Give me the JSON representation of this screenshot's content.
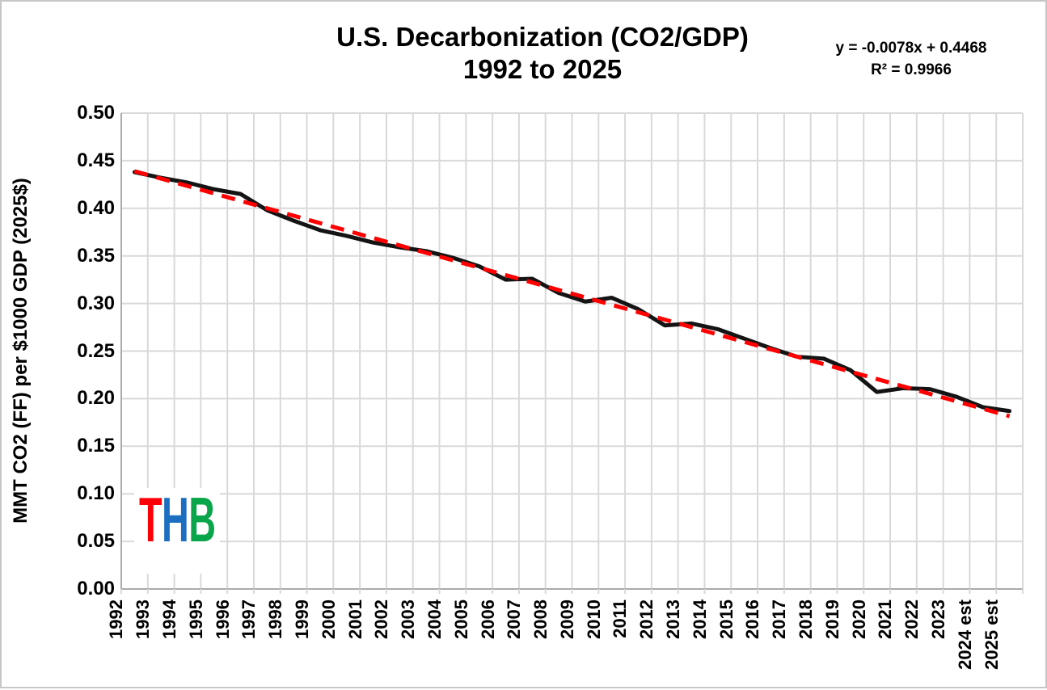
{
  "title": {
    "line1": "U.S. Decarbonization (CO2/GDP)",
    "line2": "1992 to 2025"
  },
  "equation": {
    "line1": "y = -0.0078x  + 0.4468",
    "line2": "R² = 0.9966"
  },
  "logo": {
    "text": "THB",
    "letters": [
      {
        "char": "T",
        "color": "#fb0107"
      },
      {
        "char": "H",
        "color": "#1c6fc0"
      },
      {
        "char": "B",
        "color": "#09a54a"
      }
    ]
  },
  "chart_data": {
    "type": "line",
    "title": "U.S. Decarbonization (CO2/GDP) 1992 to 2025",
    "xlabel": "",
    "ylabel": "MMT CO2 (FF) per $1000 GDP (2025$)",
    "ylim": [
      0.0,
      0.5
    ],
    "ytick_step": 0.05,
    "grid": true,
    "gridline_color": "#d9d9d9",
    "axis_color": "#ababab",
    "categories": [
      "1992",
      "1993",
      "1994",
      "1995",
      "1996",
      "1997",
      "1998",
      "1999",
      "2000",
      "2001",
      "2002",
      "2003",
      "2004",
      "2005",
      "2006",
      "2007",
      "2008",
      "2009",
      "2010",
      "2011",
      "2012",
      "2013",
      "2014",
      "2015",
      "2016",
      "2017",
      "2018",
      "2019",
      "2020",
      "2021",
      "2022",
      "2023",
      "2024 est",
      "2025 est"
    ],
    "series": [
      {
        "name": "CO2 (FF) per $1000 GDP",
        "color": "#141414",
        "values": [
          0.438,
          0.432,
          0.427,
          0.42,
          0.415,
          0.398,
          0.387,
          0.377,
          0.371,
          0.364,
          0.359,
          0.355,
          0.348,
          0.339,
          0.325,
          0.326,
          0.311,
          0.302,
          0.306,
          0.294,
          0.277,
          0.279,
          0.273,
          0.263,
          0.253,
          0.244,
          0.242,
          0.23,
          0.207,
          0.211,
          0.21,
          0.202,
          0.191,
          0.187
        ]
      }
    ],
    "trendline": {
      "equation": "y = -0.0078x + 0.4468",
      "slope": -0.0078,
      "intercept": 0.4468,
      "r_squared": 0.9966,
      "color": "#ff0000",
      "style": "dashed"
    },
    "legend": "none"
  }
}
